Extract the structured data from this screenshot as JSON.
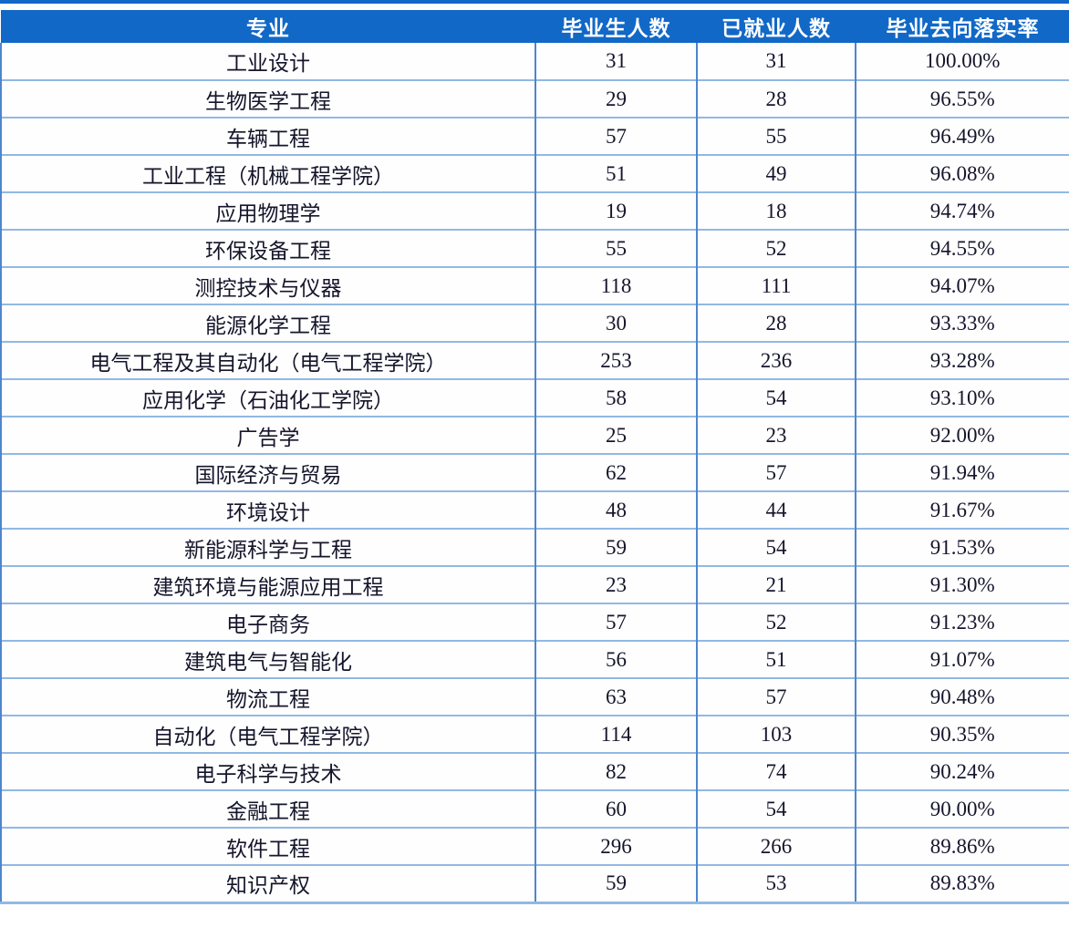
{
  "colors": {
    "header_bg": "#1168C6",
    "header_text": "#FFFFFF",
    "grid_vertical": "#4D86CB",
    "grid_horizontal": "#92B8E3",
    "body_text": "#15152B",
    "top_accent": "#1168C6"
  },
  "table": {
    "columns": [
      "专业",
      "毕业生人数",
      "已就业人数",
      "毕业去向落实率"
    ],
    "rows": [
      {
        "major": "工业设计",
        "graduates": "31",
        "employed": "31",
        "rate": "100.00%"
      },
      {
        "major": "生物医学工程",
        "graduates": "29",
        "employed": "28",
        "rate": "96.55%"
      },
      {
        "major": "车辆工程",
        "graduates": "57",
        "employed": "55",
        "rate": "96.49%"
      },
      {
        "major": "工业工程（机械工程学院）",
        "graduates": "51",
        "employed": "49",
        "rate": "96.08%"
      },
      {
        "major": "应用物理学",
        "graduates": "19",
        "employed": "18",
        "rate": "94.74%"
      },
      {
        "major": "环保设备工程",
        "graduates": "55",
        "employed": "52",
        "rate": "94.55%"
      },
      {
        "major": "测控技术与仪器",
        "graduates": "118",
        "employed": "111",
        "rate": "94.07%"
      },
      {
        "major": "能源化学工程",
        "graduates": "30",
        "employed": "28",
        "rate": "93.33%"
      },
      {
        "major": "电气工程及其自动化（电气工程学院）",
        "graduates": "253",
        "employed": "236",
        "rate": "93.28%"
      },
      {
        "major": "应用化学（石油化工学院）",
        "graduates": "58",
        "employed": "54",
        "rate": "93.10%"
      },
      {
        "major": "广告学",
        "graduates": "25",
        "employed": "23",
        "rate": "92.00%"
      },
      {
        "major": "国际经济与贸易",
        "graduates": "62",
        "employed": "57",
        "rate": "91.94%"
      },
      {
        "major": "环境设计",
        "graduates": "48",
        "employed": "44",
        "rate": "91.67%"
      },
      {
        "major": "新能源科学与工程",
        "graduates": "59",
        "employed": "54",
        "rate": "91.53%"
      },
      {
        "major": "建筑环境与能源应用工程",
        "graduates": "23",
        "employed": "21",
        "rate": "91.30%"
      },
      {
        "major": "电子商务",
        "graduates": "57",
        "employed": "52",
        "rate": "91.23%"
      },
      {
        "major": "建筑电气与智能化",
        "graduates": "56",
        "employed": "51",
        "rate": "91.07%"
      },
      {
        "major": "物流工程",
        "graduates": "63",
        "employed": "57",
        "rate": "90.48%"
      },
      {
        "major": "自动化（电气工程学院）",
        "graduates": "114",
        "employed": "103",
        "rate": "90.35%"
      },
      {
        "major": "电子科学与技术",
        "graduates": "82",
        "employed": "74",
        "rate": "90.24%"
      },
      {
        "major": "金融工程",
        "graduates": "60",
        "employed": "54",
        "rate": "90.00%"
      },
      {
        "major": "软件工程",
        "graduates": "296",
        "employed": "266",
        "rate": "89.86%"
      },
      {
        "major": "知识产权",
        "graduates": "59",
        "employed": "53",
        "rate": "89.83%"
      }
    ]
  }
}
